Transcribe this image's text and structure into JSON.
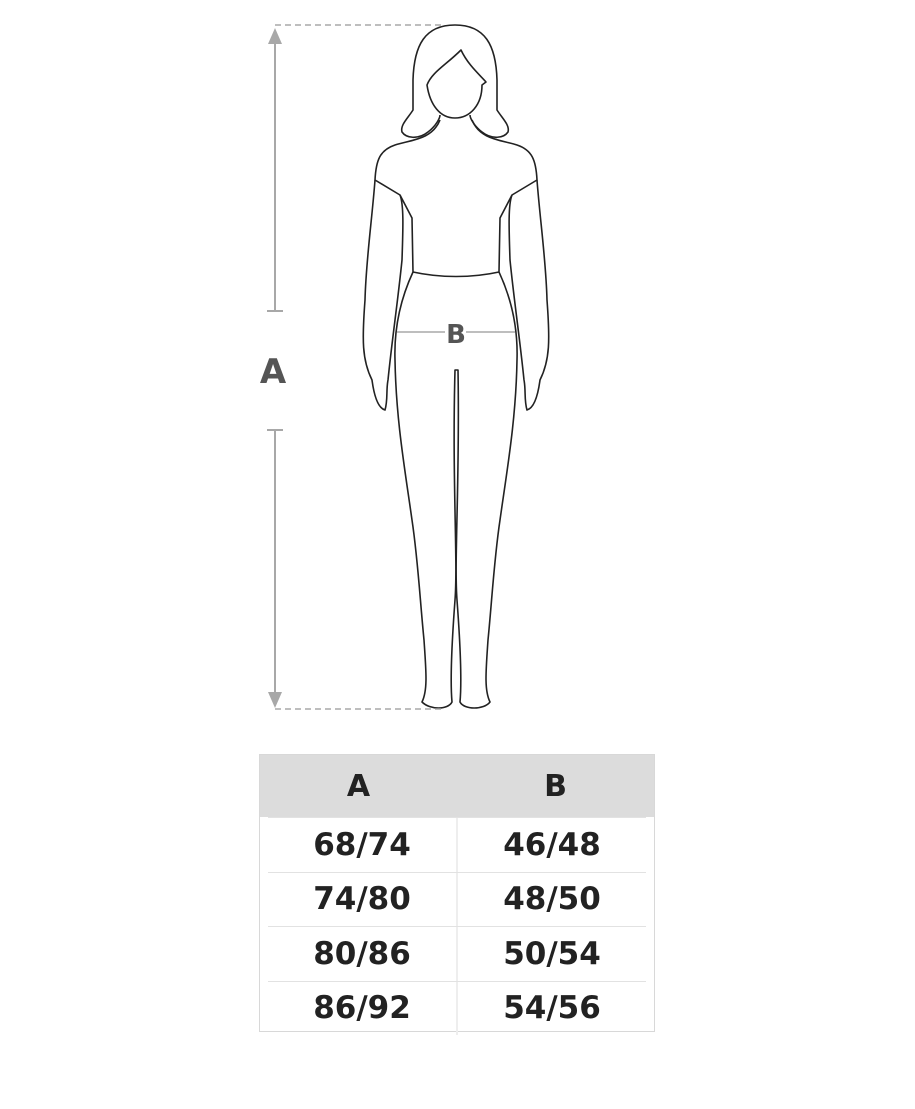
{
  "diagram": {
    "label_a": "A",
    "label_b": "B",
    "line_color": "#222222",
    "measure_color": "#a8a8a8"
  },
  "size_table": {
    "headers": [
      "A",
      "B"
    ],
    "rows": [
      [
        "68/74",
        "46/48"
      ],
      [
        "74/80",
        "48/50"
      ],
      [
        "80/86",
        "50/54"
      ],
      [
        "86/92",
        "54/56"
      ]
    ],
    "header_bg": "#dcdcdc"
  }
}
